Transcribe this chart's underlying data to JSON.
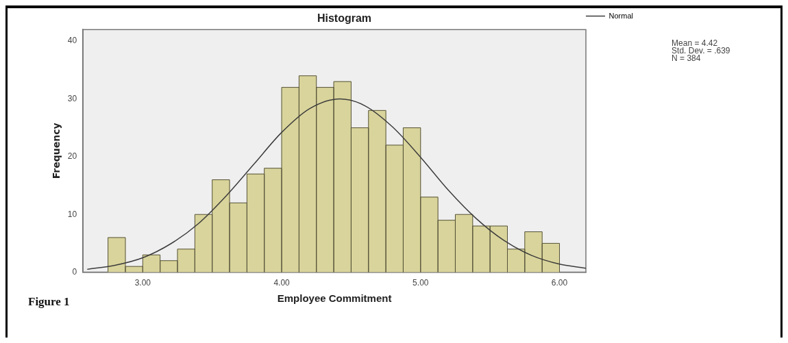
{
  "chart_data": {
    "type": "histogram",
    "title": "Histogram",
    "xlabel": "Employee Commitment",
    "ylabel": "Frequency",
    "bins": [
      2.75,
      2.875,
      3.0,
      3.125,
      3.25,
      3.375,
      3.5,
      3.625,
      3.75,
      3.875,
      4.0,
      4.125,
      4.25,
      4.375,
      4.5,
      4.625,
      4.75,
      4.875,
      5.0,
      5.125,
      5.25,
      5.375,
      5.5,
      5.625,
      5.75,
      5.875,
      6.0
    ],
    "values": [
      6,
      1,
      3,
      2,
      4,
      10,
      16,
      12,
      17,
      18,
      32,
      34,
      32,
      33,
      25,
      28,
      22,
      25,
      13,
      9,
      10,
      8,
      8,
      4,
      7,
      5
    ],
    "color": "#d9d49b",
    "series": [
      {
        "name": "Normal",
        "type": "line",
        "color": "#3c3c3c",
        "x": [
          2.6,
          2.8,
          3.0,
          3.2,
          3.4,
          3.6,
          3.8,
          4.0,
          4.2,
          4.42,
          4.6,
          4.8,
          5.0,
          5.2,
          5.4,
          5.6,
          5.8,
          6.0,
          6.19
        ],
        "values": [
          0.5,
          1.2,
          2.5,
          4.9,
          8.4,
          13.2,
          18.7,
          24.2,
          28.3,
          30.0,
          28.8,
          25.1,
          19.9,
          14.2,
          9.3,
          5.5,
          2.9,
          1.4,
          0.7
        ]
      }
    ],
    "xlim": [
      2.57,
      6.19
    ],
    "xticks": [
      {
        "value": 3,
        "label": "3.00"
      },
      {
        "value": 4,
        "label": "4.00"
      },
      {
        "value": 5,
        "label": "5.00"
      },
      {
        "value": 6,
        "label": "6.00"
      }
    ],
    "ylim": [
      0,
      42
    ],
    "yticks": [
      0,
      10,
      20,
      30,
      40
    ],
    "grid": false,
    "legend": "top right",
    "marker": "none",
    "line_style": "solid",
    "annotations": [
      "Mean = 4.42",
      "Std. Dev. = .639",
      "N = 384",
      "Figure 1"
    ]
  }
}
